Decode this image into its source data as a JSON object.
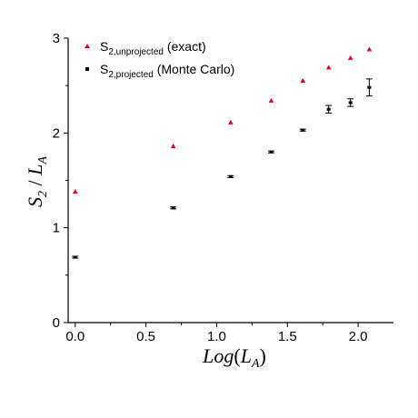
{
  "chart_data": {
    "type": "scatter",
    "xlabel": "Log(L_A)",
    "ylabel": "S_2 / L_A",
    "xlim": [
      -0.05,
      2.25
    ],
    "ylim": [
      0,
      3
    ],
    "x_ticks": [
      "0.0",
      "0.5",
      "1.0",
      "1.5",
      "2.0"
    ],
    "y_ticks": [
      "0",
      "1",
      "2",
      "3"
    ],
    "grid": false,
    "legend_position": "top-left",
    "series": [
      {
        "name": "S2,unprojected (exact)",
        "legend_main": "S",
        "legend_sub": "2,unprojected",
        "legend_rest": " (exact)",
        "marker": "triangle",
        "color": "#e8001c",
        "x": [
          0.0,
          0.693,
          1.099,
          1.386,
          1.609,
          1.792,
          1.946,
          2.079
        ],
        "y": [
          1.38,
          1.86,
          2.11,
          2.34,
          2.55,
          2.69,
          2.79,
          2.88
        ]
      },
      {
        "name": "S2,projected (Monte Carlo)",
        "legend_main": "S",
        "legend_sub": "2,projected",
        "legend_rest": " (Monte Carlo)",
        "marker": "square",
        "color": "#000000",
        "x": [
          0.0,
          0.693,
          1.099,
          1.386,
          1.609,
          1.792,
          1.946,
          2.079
        ],
        "y": [
          0.69,
          1.21,
          1.54,
          1.8,
          2.03,
          2.25,
          2.32,
          2.48
        ],
        "err": [
          0.01,
          0.01,
          0.01,
          0.01,
          0.01,
          0.04,
          0.04,
          0.09
        ]
      }
    ]
  }
}
